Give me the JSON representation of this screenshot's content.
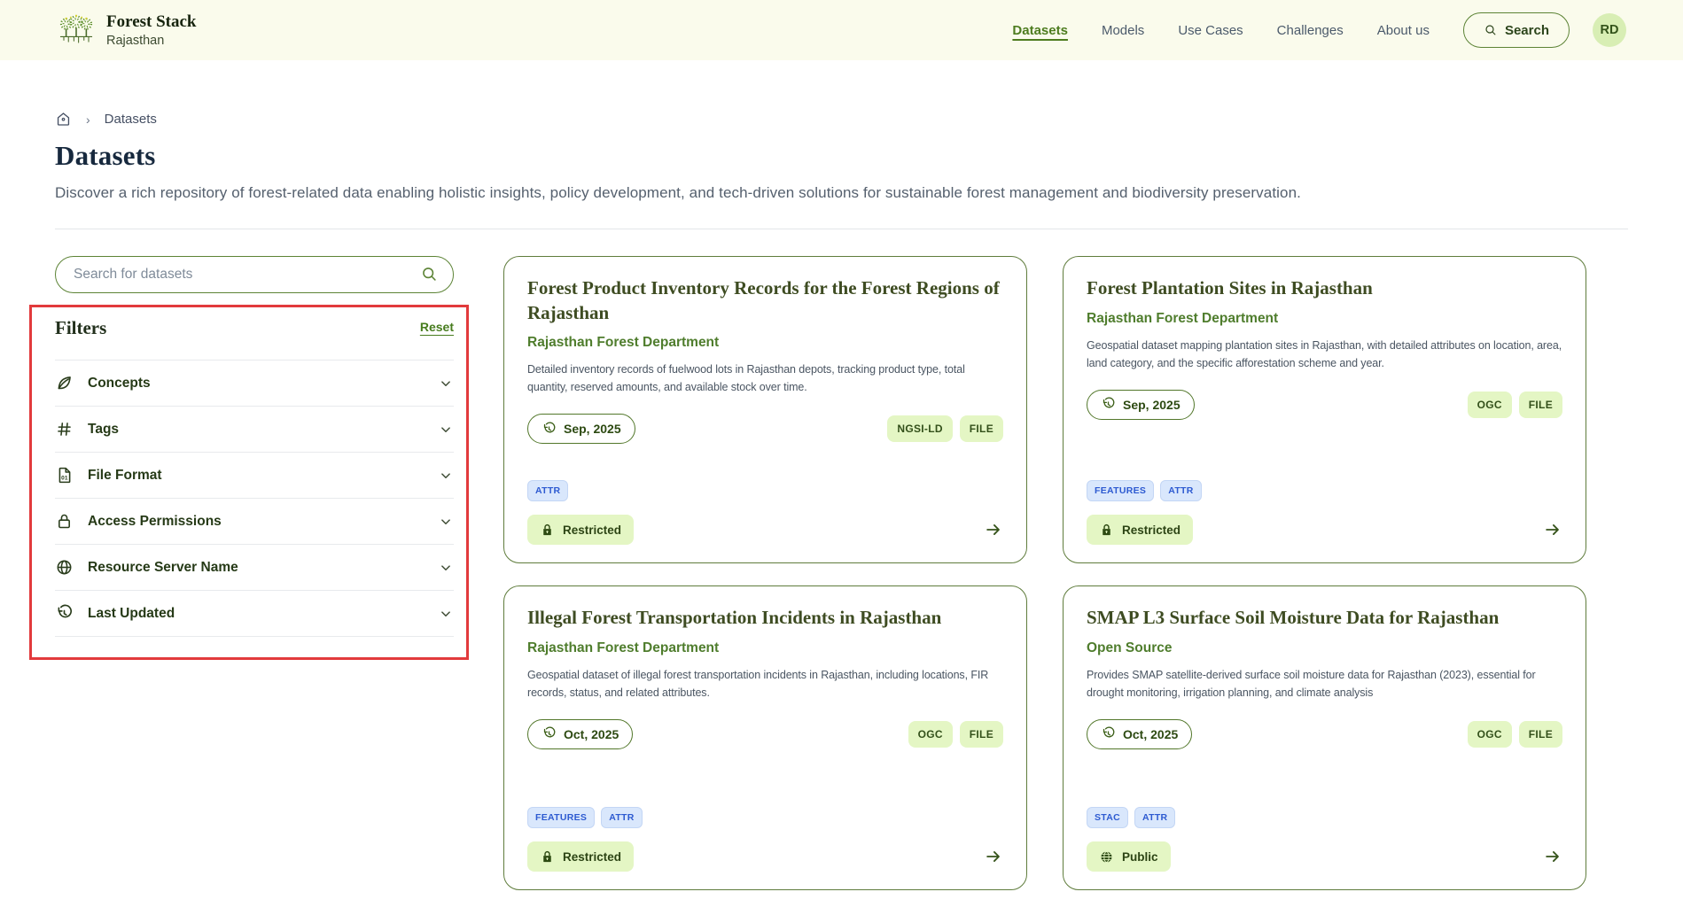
{
  "brand": {
    "title": "Forest Stack",
    "subtitle": "Rajasthan"
  },
  "nav": {
    "items": [
      {
        "label": "Datasets",
        "active": true
      },
      {
        "label": "Models",
        "active": false
      },
      {
        "label": "Use Cases",
        "active": false
      },
      {
        "label": "Challenges",
        "active": false
      },
      {
        "label": "About us",
        "active": false
      }
    ],
    "search_label": "Search",
    "avatar_initials": "RD"
  },
  "breadcrumb": {
    "current": "Datasets"
  },
  "page": {
    "title": "Datasets",
    "description": "Discover a rich repository of forest-related data enabling holistic insights, policy development, and tech-driven solutions for sustainable forest management and biodiversity preservation."
  },
  "search": {
    "placeholder": "Search for datasets"
  },
  "filters": {
    "title": "Filters",
    "reset_label": "Reset",
    "items": [
      {
        "label": "Concepts",
        "icon": "i-leaf",
        "icon_name": "leaf-icon"
      },
      {
        "label": "Tags",
        "icon": "i-hash",
        "icon_name": "hash-icon"
      },
      {
        "label": "File Format",
        "icon": "i-file",
        "icon_name": "file-icon"
      },
      {
        "label": "Access Permissions",
        "icon": "i-lock",
        "icon_name": "lock-icon"
      },
      {
        "label": "Resource Server Name",
        "icon": "i-globe",
        "icon_name": "globe-icon"
      },
      {
        "label": "Last Updated",
        "icon": "i-history",
        "icon_name": "history-clock-icon"
      }
    ]
  },
  "cards": [
    {
      "title": "Forest Product Inventory Records for the Forest Regions of Rajasthan",
      "org": "Rajasthan Forest Department",
      "description": "Detailed inventory records of fuelwood lots in Rajasthan depots, tracking product type, total quantity, reserved amounts, and available stock over time.",
      "updated": "Sep, 2025",
      "formats": [
        "NGSI-LD",
        "FILE"
      ],
      "apis": [
        "ATTR"
      ],
      "access": "Restricted",
      "access_icon": "i-lock-filled",
      "access_icon_name": "lock-icon"
    },
    {
      "title": "Forest Plantation Sites in Rajasthan",
      "org": "Rajasthan Forest Department",
      "description": "Geospatial dataset mapping plantation sites in Rajasthan, with detailed attributes on location, area, land category, and the specific afforestation scheme and year.",
      "updated": "Sep, 2025",
      "formats": [
        "OGC",
        "FILE"
      ],
      "apis": [
        "FEATURES",
        "ATTR"
      ],
      "access": "Restricted",
      "access_icon": "i-lock-filled",
      "access_icon_name": "lock-icon"
    },
    {
      "title": "Illegal Forest Transportation Incidents in Rajasthan",
      "org": "Rajasthan Forest Department",
      "description": "Geospatial dataset of illegal forest transportation incidents in Rajasthan, including locations, FIR records, status, and related attributes.",
      "updated": "Oct, 2025",
      "formats": [
        "OGC",
        "FILE"
      ],
      "apis": [
        "FEATURES",
        "ATTR"
      ],
      "access": "Restricted",
      "access_icon": "i-lock-filled",
      "access_icon_name": "lock-icon"
    },
    {
      "title": "SMAP L3 Surface Soil Moisture Data for Rajasthan",
      "org": "Open Source",
      "description": "Provides SMAP satellite-derived surface soil moisture data for Rajasthan (2023), essential for drought monitoring, irrigation planning, and climate analysis",
      "updated": "Oct, 2025",
      "formats": [
        "OGC",
        "FILE"
      ],
      "apis": [
        "STAC",
        "ATTR"
      ],
      "access": "Public",
      "access_icon": "i-globe-filled",
      "access_icon_name": "globe-icon"
    }
  ],
  "colors": {
    "header_bg": "#fafbec",
    "accent_green": "#4d7c1f",
    "lime_badge_bg": "#e4f6c4",
    "blue_badge_bg": "#d9e7fc",
    "blue_badge_text": "#2d5ad1",
    "card_border": "#5f7c3c",
    "annotation_red": "#e23a3c"
  }
}
